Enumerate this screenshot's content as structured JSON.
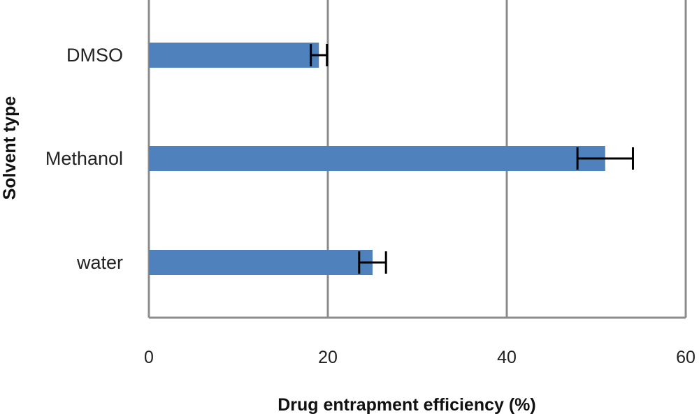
{
  "chart_data": {
    "type": "bar",
    "orientation": "horizontal",
    "title": "",
    "xlabel": "Drug entrapment efficiency (%)",
    "ylabel": "Solvent type",
    "xlim": [
      0,
      60
    ],
    "x_ticks": [
      0,
      20,
      40,
      60
    ],
    "x_tick_labels": [
      "0",
      "20",
      "40",
      "60"
    ],
    "grid": "vertical",
    "categories": [
      "DMSO",
      "Methanol",
      "water"
    ],
    "values": [
      19,
      51,
      25
    ],
    "errors": [
      0.9,
      3.1,
      1.5
    ],
    "colors": {
      "bar": "#4f81bd",
      "grid": "#8c8c8c",
      "error": "#000000"
    }
  }
}
